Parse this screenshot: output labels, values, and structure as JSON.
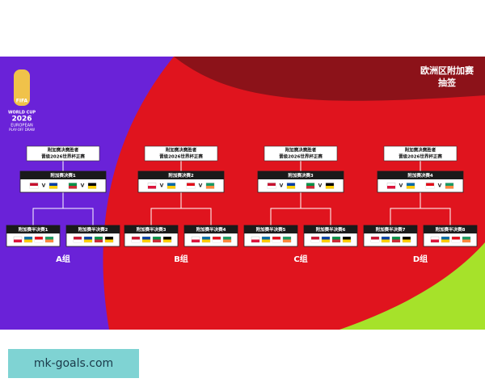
{
  "header": {
    "title": "欧洲区附加赛",
    "subtitle": "抽签"
  },
  "logo": {
    "brand": "FIFA",
    "line1": "WORLD CUP",
    "year": "2026",
    "line2": "EUROPEAN",
    "line3": "PLAY-OFF DRAW"
  },
  "versus": "V",
  "groups": [
    {
      "winner": [
        "附加赛决赛胜者",
        "晋级2026世界杯正赛"
      ],
      "final": "附加赛决赛1",
      "semis": [
        "附加赛半决赛1",
        "附加赛半决赛2"
      ],
      "label": "A组"
    },
    {
      "winner": [
        "附加赛决赛胜者",
        "晋级2026世界杯正赛"
      ],
      "final": "附加赛决赛2",
      "semis": [
        "附加赛半决赛3",
        "附加赛半决赛4"
      ],
      "label": "B组"
    },
    {
      "winner": [
        "附加赛决赛胜者",
        "晋级2026世界杯正赛"
      ],
      "final": "附加赛决赛3",
      "semis": [
        "附加赛半决赛5",
        "附加赛半决赛6"
      ],
      "label": "C组"
    },
    {
      "winner": [
        "附加赛决赛胜者",
        "晋级2026世界杯正赛"
      ],
      "final": "附加赛决赛4",
      "semis": [
        "附加赛半决赛7",
        "附加赛半决赛8"
      ],
      "label": "D组"
    }
  ],
  "watermark": "mk-goals.com"
}
